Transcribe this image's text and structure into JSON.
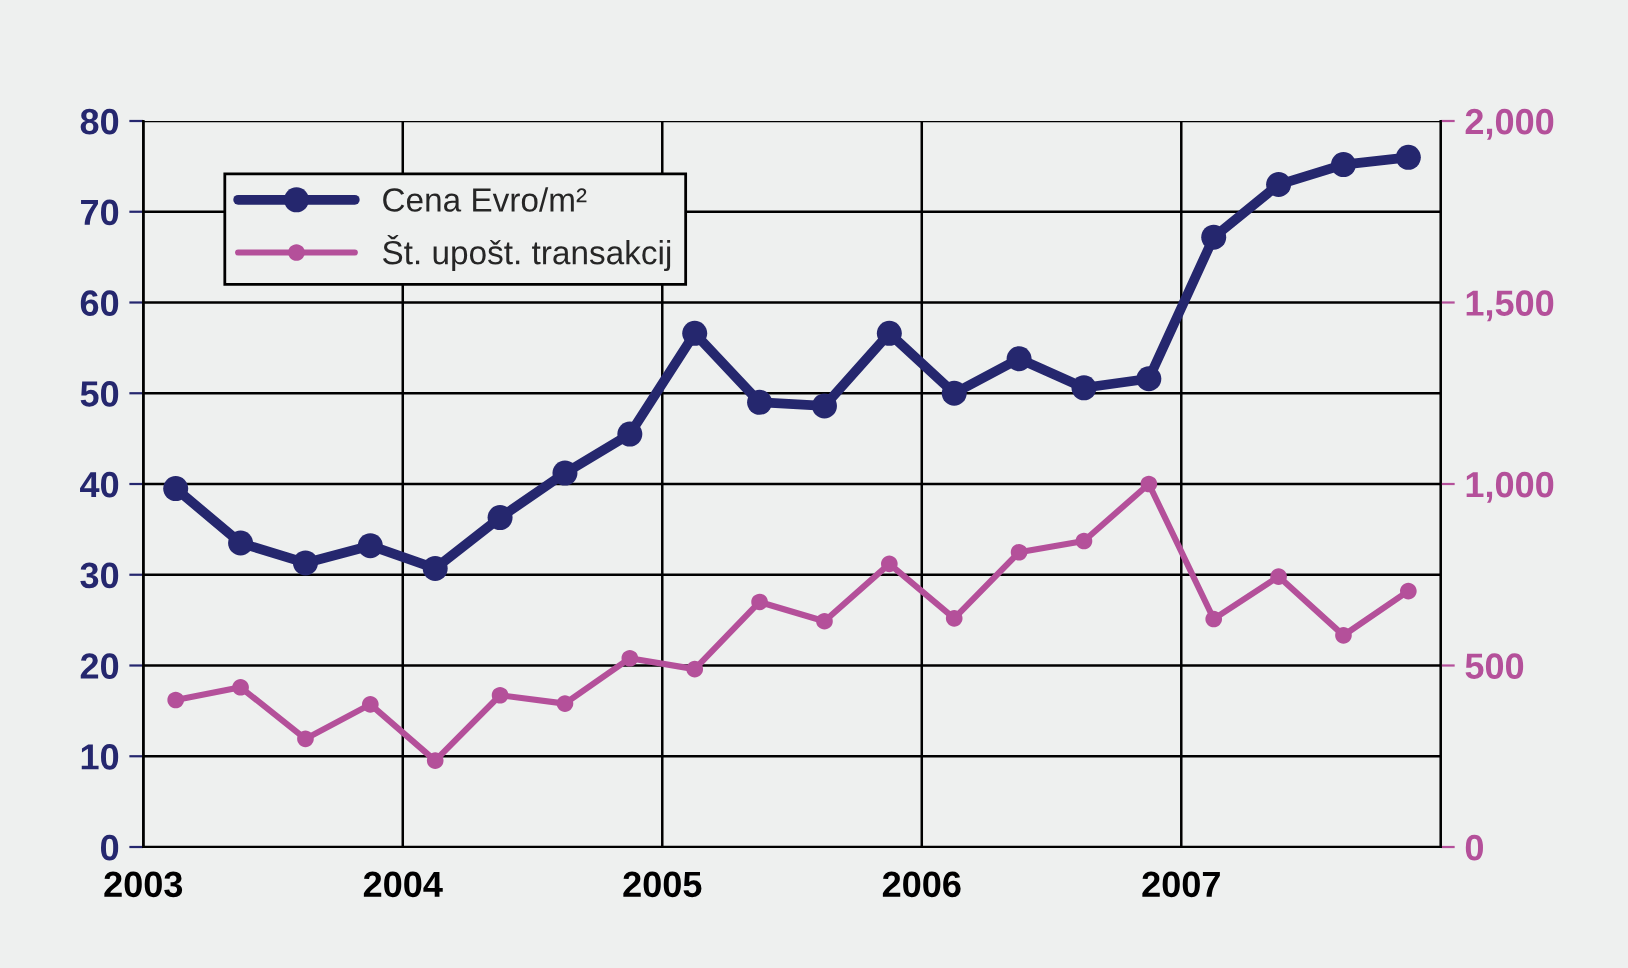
{
  "chart_data": {
    "type": "line",
    "x": [
      2003.125,
      2003.375,
      2003.625,
      2003.875,
      2004.125,
      2004.375,
      2004.625,
      2004.875,
      2005.125,
      2005.375,
      2005.625,
      2005.875,
      2006.125,
      2006.375,
      2006.625,
      2006.875,
      2007.125,
      2007.375,
      2007.625,
      2007.875
    ],
    "series": [
      {
        "name": "Cena Evro/m²",
        "color": "#25276e",
        "values": [
          39.5,
          33.5,
          31.3,
          33.2,
          30.7,
          36.3,
          41.2,
          45.5,
          56.6,
          49,
          48.6,
          56.6,
          50,
          53.8,
          50.6,
          51.6,
          67.2,
          73,
          75.2,
          76
        ]
      },
      {
        "name": "Št. upošt. transakcij",
        "color": "#b4509a",
        "axis": "y2",
        "values": [
          405,
          440,
          298,
          393,
          238,
          418,
          395,
          520,
          490,
          675,
          622,
          780,
          630,
          812,
          843,
          1000,
          628,
          745,
          583,
          705
        ]
      }
    ],
    "xlim": [
      2003,
      2008
    ],
    "xticks": [
      2003,
      2004,
      2005,
      2006,
      2007
    ],
    "ylim": [
      0,
      80
    ],
    "yticks": [
      0,
      10,
      20,
      30,
      40,
      50,
      60,
      70,
      80
    ],
    "y2lim": [
      0,
      2000
    ],
    "y2ticks": [
      {
        "value": 0,
        "label": "0"
      },
      {
        "value": 500,
        "label": "500"
      },
      {
        "value": 1000,
        "label": "1,000"
      },
      {
        "value": 1500,
        "label": "1,500"
      },
      {
        "value": 2000,
        "label": "2,000"
      }
    ],
    "grid": true,
    "legend": "top left",
    "marker": "circle",
    "line_style": "solid"
  }
}
